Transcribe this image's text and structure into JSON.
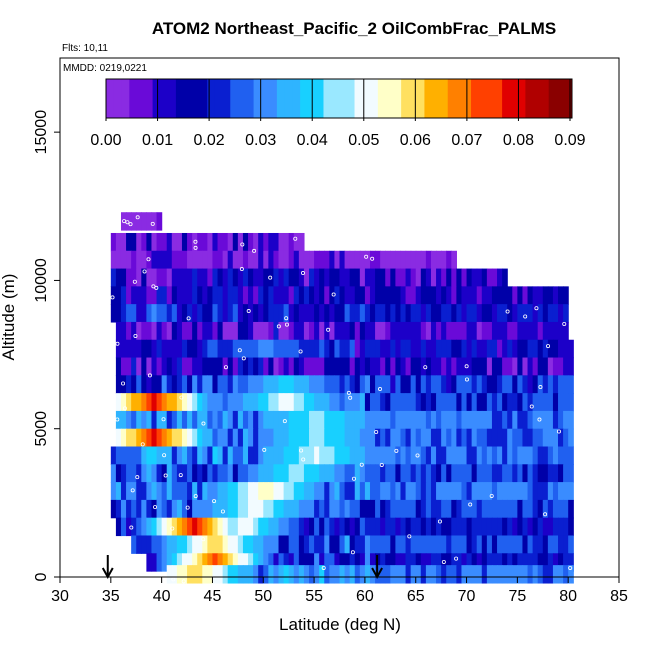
{
  "chart_data": {
    "type": "heatmap",
    "title": "ATOM2 Northeast_Pacific_2 OilCombFrac_PALMS",
    "subtitle_flights": "Flts: 10,11",
    "subtitle_dates": "MMDD: 0219,0221",
    "xlabel": "Latitude (deg N)",
    "ylabel": "Altitude (m)",
    "xlim": [
      30,
      85
    ],
    "ylim": [
      0,
      17500
    ],
    "x_ticks": [
      "30",
      "35",
      "40",
      "45",
      "50",
      "55",
      "60",
      "65",
      "70",
      "75",
      "80",
      "85"
    ],
    "y_ticks": [
      "0",
      "5000",
      "10000",
      "15000"
    ],
    "colorbar": {
      "range": [
        0,
        0.09
      ],
      "tick_labels": [
        "0.00",
        "0.01",
        "0.02",
        "0.03",
        "0.04",
        "0.05",
        "0.06",
        "0.07",
        "0.08",
        "0.09"
      ],
      "colors": [
        "#8a2be2",
        "#6a0ad8",
        "#1c00c8",
        "#0000a8",
        "#0a1fd0",
        "#2060f0",
        "#3a8cff",
        "#2fb4ff",
        "#18d0ff",
        "#9ae8ff",
        "#f2fbff",
        "#ffffc8",
        "#ffe060",
        "#ffb000",
        "#ff8000",
        "#ff4000",
        "#e00000",
        "#b00000",
        "#8a0000"
      ]
    },
    "arrows_at_latitude": [
      34.7,
      61.2
    ],
    "rows": [
      {
        "alt": 12000,
        "lat_min": 36,
        "lat_max": 40,
        "base": 0.0,
        "hot": []
      },
      {
        "alt": 11300,
        "lat_min": 35,
        "lat_max": 54,
        "base": 0.008,
        "hot": []
      },
      {
        "alt": 10700,
        "lat_min": 35,
        "lat_max": 69,
        "base": 0.004,
        "hot": []
      },
      {
        "alt": 10100,
        "lat_min": 35,
        "lat_max": 74,
        "base": 0.012,
        "hot": []
      },
      {
        "alt": 9500,
        "lat_min": 35,
        "lat_max": 80,
        "base": 0.015,
        "hot": []
      },
      {
        "alt": 8900,
        "lat_min": 35,
        "lat_max": 80,
        "base": 0.02,
        "hot": []
      },
      {
        "alt": 8300,
        "lat_min": 35.5,
        "lat_max": 80,
        "base": 0.01,
        "hot": []
      },
      {
        "alt": 7700,
        "lat_min": 35.5,
        "lat_max": 80.5,
        "base": 0.018,
        "hot": [
          [
            50,
            0.03
          ]
        ]
      },
      {
        "alt": 7100,
        "lat_min": 35.5,
        "lat_max": 80.5,
        "base": 0.012,
        "hot": []
      },
      {
        "alt": 6500,
        "lat_min": 35.5,
        "lat_max": 80.5,
        "base": 0.022,
        "hot": [
          [
            52,
            0.04
          ]
        ]
      },
      {
        "alt": 5900,
        "lat_min": 35.5,
        "lat_max": 80.5,
        "base": 0.025,
        "hot": [
          [
            39,
            0.08
          ],
          [
            52,
            0.05
          ]
        ]
      },
      {
        "alt": 5300,
        "lat_min": 35.5,
        "lat_max": 80.5,
        "base": 0.03,
        "hot": [
          [
            55,
            0.045
          ]
        ]
      },
      {
        "alt": 4700,
        "lat_min": 35.5,
        "lat_max": 80.5,
        "base": 0.028,
        "hot": [
          [
            39,
            0.078
          ],
          [
            55,
            0.045
          ]
        ]
      },
      {
        "alt": 4100,
        "lat_min": 35,
        "lat_max": 80.5,
        "base": 0.03,
        "hot": [
          [
            55,
            0.048
          ]
        ]
      },
      {
        "alt": 3500,
        "lat_min": 35,
        "lat_max": 80.5,
        "base": 0.025,
        "hot": [
          [
            53,
            0.045
          ]
        ]
      },
      {
        "alt": 2900,
        "lat_min": 35,
        "lat_max": 80.5,
        "base": 0.028,
        "hot": [
          [
            50,
            0.055
          ]
        ]
      },
      {
        "alt": 2300,
        "lat_min": 35,
        "lat_max": 80.5,
        "base": 0.025,
        "hot": [
          [
            49,
            0.05
          ]
        ]
      },
      {
        "alt": 1700,
        "lat_min": 35.5,
        "lat_max": 80.5,
        "base": 0.02,
        "hot": [
          [
            43,
            0.08
          ],
          [
            48,
            0.05
          ]
        ]
      },
      {
        "alt": 1100,
        "lat_min": 37,
        "lat_max": 80.5,
        "base": 0.025,
        "hot": [
          [
            45,
            0.06
          ]
        ]
      },
      {
        "alt": 500,
        "lat_min": 38.5,
        "lat_max": 80.5,
        "base": 0.02,
        "hot": [
          [
            45,
            0.075
          ]
        ]
      },
      {
        "alt": 100,
        "lat_min": 40.5,
        "lat_max": 80.5,
        "base": 0.03,
        "hot": [
          [
            43,
            0.06
          ]
        ]
      }
    ]
  }
}
